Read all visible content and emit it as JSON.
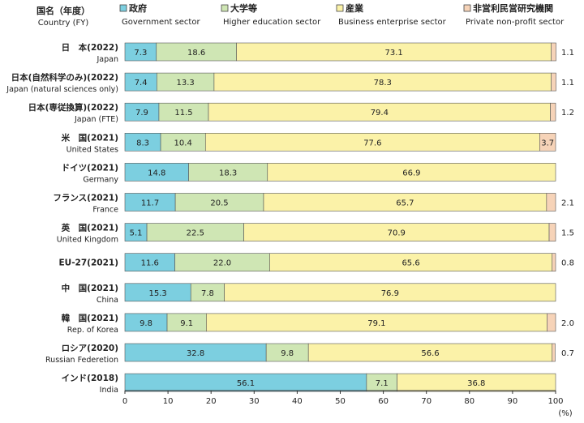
{
  "chart_data": {
    "type": "bar",
    "stacked": true,
    "orientation": "horizontal",
    "header": {
      "label_jp": "国名（年度）",
      "label_en": "Country (FY)"
    },
    "legend": [
      {
        "marker": "□",
        "jp": "政府",
        "en": "Government sector",
        "color": "#7ccfe0"
      },
      {
        "marker": "□",
        "jp": "大学等",
        "en": "Higher education sector",
        "color": "#cfe6b4"
      },
      {
        "marker": "□",
        "jp": "産業",
        "en": "Business enterprise sector",
        "color": "#fbf2a8"
      },
      {
        "marker": "□",
        "jp": "非営利民営研究機関",
        "en": "Private non-profit sector",
        "color": "#f6d3b8"
      }
    ],
    "categories": [
      {
        "jp": "日　本",
        "year": "(2022)",
        "en": "Japan"
      },
      {
        "jp": "日本(自然科学のみ)",
        "year": "(2022)",
        "en": "Japan (natural sciences only)"
      },
      {
        "jp": "日本(専従換算)",
        "year": "(2022)",
        "en": "Japan (FTE)"
      },
      {
        "jp": "米　国",
        "year": "(2021)",
        "en": "United States"
      },
      {
        "jp": "ドイツ",
        "year": "(2021)",
        "en": "Germany"
      },
      {
        "jp": "フランス",
        "year": "(2021)",
        "en": "France"
      },
      {
        "jp": "英　国",
        "year": "(2021)",
        "en": "United Kingdom"
      },
      {
        "jp": "EU-27",
        "year": "(2021)",
        "en": ""
      },
      {
        "jp": "中　国",
        "year": "(2021)",
        "en": "China"
      },
      {
        "jp": "韓　国",
        "year": "(2021)",
        "en": "Rep. of Korea"
      },
      {
        "jp": "ロシア",
        "year": "(2020)",
        "en": "Russian Federetion"
      },
      {
        "jp": "インド",
        "year": "(2018)",
        "en": "India"
      }
    ],
    "series": [
      {
        "name": "Government sector",
        "values": [
          7.3,
          7.4,
          7.9,
          8.3,
          14.8,
          11.7,
          5.1,
          11.6,
          15.3,
          9.8,
          32.8,
          56.1
        ]
      },
      {
        "name": "Higher education sector",
        "values": [
          18.6,
          13.3,
          11.5,
          10.4,
          18.3,
          20.5,
          22.5,
          22.0,
          7.8,
          9.1,
          9.8,
          7.1
        ]
      },
      {
        "name": "Business enterprise sector",
        "values": [
          73.1,
          78.3,
          79.4,
          77.6,
          66.9,
          65.7,
          70.9,
          65.6,
          76.9,
          79.1,
          56.6,
          36.8
        ]
      },
      {
        "name": "Private non-profit sector",
        "values": [
          1.1,
          1.1,
          1.2,
          3.7,
          0,
          2.1,
          1.5,
          0.8,
          0,
          2.0,
          0.7,
          0
        ]
      }
    ],
    "value_labels": [
      [
        "7.3",
        "18.6",
        "73.1",
        "1.1"
      ],
      [
        "7.4",
        "13.3",
        "78.3",
        "1.1"
      ],
      [
        "7.9",
        "11.5",
        "79.4",
        "1.2"
      ],
      [
        "8.3",
        "10.4",
        "77.6",
        "3.7"
      ],
      [
        "14.8",
        "18.3",
        "66.9",
        ""
      ],
      [
        "11.7",
        "20.5",
        "65.7",
        "2.1"
      ],
      [
        "5.1",
        "22.5",
        "70.9",
        "1.5"
      ],
      [
        "11.6",
        "22.0",
        "65.6",
        "0.8"
      ],
      [
        "15.3",
        "7.8",
        "76.9",
        ""
      ],
      [
        "9.8",
        "9.1",
        "79.1",
        "2.0"
      ],
      [
        "32.8",
        "9.8",
        "56.6",
        "0.7"
      ],
      [
        "56.1",
        "7.1",
        "36.8",
        ""
      ]
    ],
    "x_ticks": [
      "0",
      "10",
      "20",
      "30",
      "40",
      "50",
      "60",
      "70",
      "80",
      "90",
      "100"
    ],
    "xlim": [
      0,
      100
    ],
    "x_unit": "(%)",
    "grid": false,
    "legend_position": "top"
  }
}
